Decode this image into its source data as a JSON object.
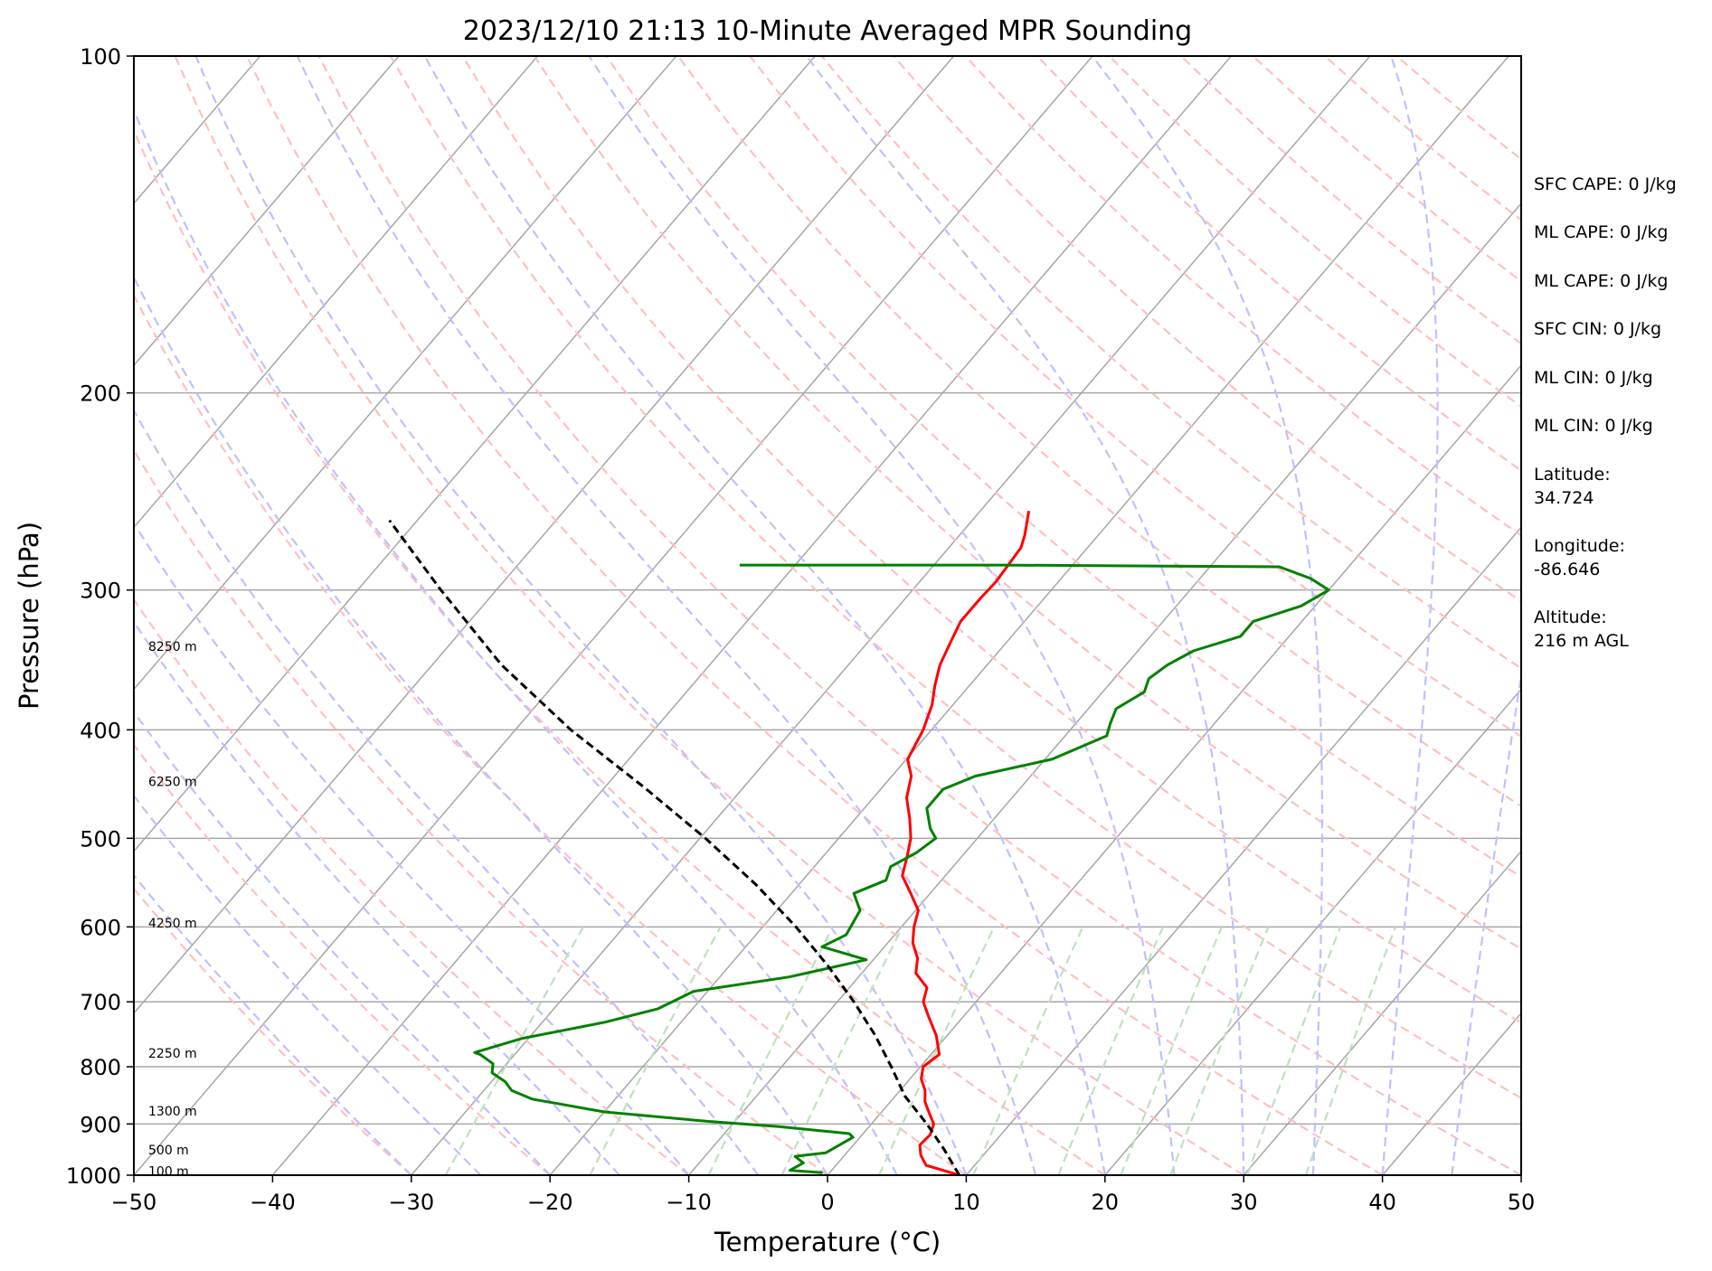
{
  "chart_data": {
    "type": "skew-t",
    "title": "2023/12/10 21:13 10-Minute Averaged MPR Sounding",
    "xlabel": "Temperature (°C)",
    "ylabel": "Pressure (hPa)",
    "xlim": [
      -50,
      50
    ],
    "ylim": [
      1000,
      100
    ],
    "yscale": "log",
    "x_ticks": [
      "−50",
      "−40",
      "−30",
      "−20",
      "−10",
      "0",
      "10",
      "20",
      "30",
      "40",
      "50"
    ],
    "y_ticks": [
      {
        "p": 100,
        "label": "100"
      },
      {
        "p": 200,
        "label": "200"
      },
      {
        "p": 300,
        "label": "300"
      },
      {
        "p": 400,
        "label": "400"
      },
      {
        "p": 500,
        "label": "500"
      },
      {
        "p": 600,
        "label": "600"
      },
      {
        "p": 700,
        "label": "700"
      },
      {
        "p": 800,
        "label": "800"
      },
      {
        "p": 900,
        "label": "900"
      },
      {
        "p": 1000,
        "label": "1000"
      }
    ],
    "height_labels": [
      {
        "p": 337,
        "text": "8250 m"
      },
      {
        "p": 445,
        "text": "6250 m"
      },
      {
        "p": 595,
        "text": "4250 m"
      },
      {
        "p": 778,
        "text": "2250 m"
      },
      {
        "p": 876,
        "text": "1300 m"
      },
      {
        "p": 949,
        "text": "500 m"
      },
      {
        "p": 992,
        "text": "100 m"
      }
    ],
    "series": [
      {
        "name": "Temperature",
        "color": "#ff0000",
        "points": [
          [
            9.5,
            1000
          ],
          [
            6.5,
            980
          ],
          [
            5.5,
            960
          ],
          [
            4.8,
            940
          ],
          [
            4.9,
            920
          ],
          [
            4.5,
            900
          ],
          [
            3.5,
            880
          ],
          [
            2.5,
            860
          ],
          [
            1.8,
            840
          ],
          [
            0.8,
            820
          ],
          [
            0.2,
            800
          ],
          [
            0.6,
            780
          ],
          [
            -0.8,
            750
          ],
          [
            -2.6,
            720
          ],
          [
            -3.8,
            700
          ],
          [
            -4.4,
            680
          ],
          [
            -6.1,
            660
          ],
          [
            -6.9,
            640
          ],
          [
            -8.2,
            620
          ],
          [
            -9.1,
            600
          ],
          [
            -9.8,
            580
          ],
          [
            -11.4,
            560
          ],
          [
            -13.1,
            540
          ],
          [
            -13.9,
            520
          ],
          [
            -14.8,
            500
          ],
          [
            -16.1,
            480
          ],
          [
            -17.6,
            460
          ],
          [
            -18.6,
            440
          ],
          [
            -19.9,
            425
          ],
          [
            -20.6,
            400
          ],
          [
            -21.5,
            380
          ],
          [
            -22.5,
            365
          ],
          [
            -23.4,
            350
          ],
          [
            -24.0,
            335
          ],
          [
            -24.6,
            320
          ],
          [
            -24.6,
            305
          ],
          [
            -24.5,
            295
          ],
          [
            -24.8,
            275
          ],
          [
            -25.3,
            268
          ],
          [
            -26.5,
            255
          ]
        ]
      },
      {
        "name": "Dewpoint",
        "color": "#008000",
        "points": [
          [
            -0.5,
            995
          ],
          [
            -3.0,
            990
          ],
          [
            -2.5,
            975
          ],
          [
            -3.5,
            962
          ],
          [
            -1.5,
            955
          ],
          [
            -1.0,
            940
          ],
          [
            -0.5,
            925
          ],
          [
            -1.0,
            918
          ],
          [
            -6.5,
            905
          ],
          [
            -12.0,
            895
          ],
          [
            -20.0,
            878
          ],
          [
            -26.0,
            855
          ],
          [
            -28.0,
            840
          ],
          [
            -29.0,
            825
          ],
          [
            -30.5,
            810
          ],
          [
            -31.0,
            795
          ],
          [
            -32.5,
            780
          ],
          [
            -33.0,
            777
          ],
          [
            -30.5,
            755
          ],
          [
            -25.5,
            730
          ],
          [
            -22.5,
            710
          ],
          [
            -21.0,
            685
          ],
          [
            -15.0,
            665
          ],
          [
            -10.5,
            642
          ],
          [
            -14.5,
            625
          ],
          [
            -13.5,
            610
          ],
          [
            -14.0,
            580
          ],
          [
            -15.5,
            560
          ],
          [
            -14.0,
            545
          ],
          [
            -14.5,
            530
          ],
          [
            -13.5,
            515
          ],
          [
            -13.0,
            500
          ],
          [
            -14.0,
            490
          ],
          [
            -15.5,
            470
          ],
          [
            -15.5,
            452
          ],
          [
            -14.0,
            440
          ],
          [
            -9.5,
            425
          ],
          [
            -7.0,
            405
          ],
          [
            -7.5,
            395
          ],
          [
            -8.0,
            383
          ],
          [
            -7.0,
            370
          ],
          [
            -7.5,
            360
          ],
          [
            -7.0,
            350
          ],
          [
            -6.0,
            340
          ],
          [
            -3.5,
            330
          ],
          [
            -3.5,
            320
          ],
          [
            -1.0,
            310
          ],
          [
            0.0,
            300
          ],
          [
            -2.0,
            293
          ],
          [
            -5.0,
            286
          ],
          [
            -25.0,
            285
          ],
          [
            -44.0,
            285
          ]
        ]
      },
      {
        "name": "Parcel",
        "color": "#000000",
        "points": [
          [
            9.5,
            1000
          ],
          [
            6.9,
            950
          ],
          [
            4.0,
            900
          ],
          [
            0.7,
            850
          ],
          [
            -2.1,
            800
          ],
          [
            -5.2,
            750
          ],
          [
            -8.8,
            700
          ],
          [
            -12.9,
            650
          ],
          [
            -17.6,
            600
          ],
          [
            -23.1,
            550
          ],
          [
            -29.6,
            500
          ],
          [
            -37.2,
            450
          ],
          [
            -46.0,
            400
          ],
          [
            -55.0,
            350
          ],
          [
            -64.0,
            300
          ],
          [
            -72.0,
            260
          ]
        ]
      }
    ],
    "parameters": [
      "SFC CAPE: 0 J/kg",
      "ML CAPE: 0 J/kg",
      "ML CAPE: 0 J/kg",
      "SFC CIN: 0 J/kg",
      "ML CIN: 0 J/kg",
      "ML CIN: 0 J/kg"
    ],
    "location": {
      "latitude_label": "Latitude:",
      "latitude": "34.724",
      "longitude_label": "Longitude:",
      "longitude": "-86.646",
      "altitude_label": "Altitude:",
      "altitude": "216 m AGL"
    },
    "reference_lines": {
      "isotherm_color": "#a6a6a6",
      "dry_adiabat_color": "#ffbfbf",
      "moist_adiabat_color": "#bfbfff",
      "mixing_ratio_color": "#bfe0bf",
      "isobar_color": "#a6a6a6"
    }
  }
}
